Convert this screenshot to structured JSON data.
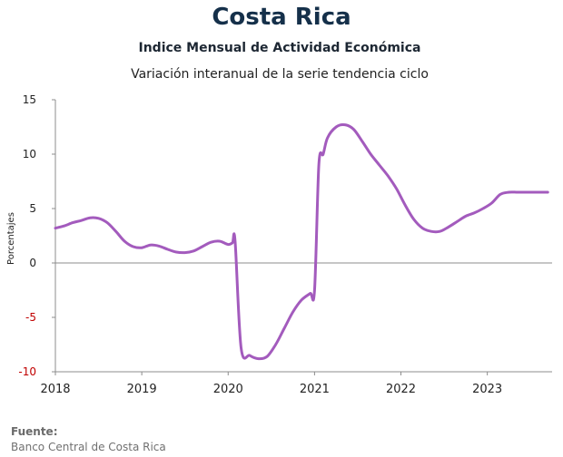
{
  "header": {
    "title": "Costa Rica",
    "subtitle": "Indice Mensual de  Actividad Económica",
    "caption": "Variación interanual de la serie tendencia ciclo"
  },
  "footer": {
    "source_label": "Fuente:",
    "source_text": "Banco Central de Costa Rica"
  },
  "chart_data": {
    "type": "line",
    "ylabel": "Porcentajes",
    "xlabel": "",
    "ylim": [
      -10,
      15
    ],
    "yticks": [
      -10,
      -5,
      0,
      5,
      10,
      15
    ],
    "xlim": [
      2018,
      2023.75
    ],
    "xticks": [
      "2018",
      "2019",
      "2020",
      "2021",
      "2022",
      "2023"
    ],
    "grid": false,
    "negative_tick_color": "#c00000",
    "line_color": "#a35bbd",
    "series": [
      {
        "x": [
          2018.0,
          2018.1,
          2018.2,
          2018.3,
          2018.4,
          2018.5,
          2018.6,
          2018.7,
          2018.8,
          2018.9,
          2019.0,
          2019.1,
          2019.2,
          2019.3,
          2019.4,
          2019.5,
          2019.6,
          2019.7,
          2019.8,
          2019.9,
          2020.0,
          2020.05,
          2020.08,
          2020.15,
          2020.25,
          2020.35,
          2020.45,
          2020.55,
          2020.65,
          2020.75,
          2020.85,
          2020.95,
          2021.0,
          2021.05,
          2021.1,
          2021.15,
          2021.25,
          2021.35,
          2021.45,
          2021.55,
          2021.65,
          2021.75,
          2021.85,
          2021.95,
          2022.05,
          2022.15,
          2022.25,
          2022.35,
          2022.45,
          2022.55,
          2022.65,
          2022.75,
          2022.85,
          2022.95,
          2023.05,
          2023.15,
          2023.25,
          2023.35,
          2023.45,
          2023.55,
          2023.7
        ],
        "y": [
          3.2,
          3.4,
          3.7,
          3.9,
          4.15,
          4.1,
          3.7,
          2.9,
          2.0,
          1.5,
          1.4,
          1.65,
          1.55,
          1.25,
          1.0,
          0.95,
          1.1,
          1.5,
          1.9,
          2.0,
          1.7,
          1.85,
          2.0,
          -7.8,
          -8.5,
          -8.8,
          -8.6,
          -7.5,
          -6.0,
          -4.5,
          -3.4,
          -2.8,
          -2.5,
          9.0,
          10.0,
          11.5,
          12.5,
          12.7,
          12.3,
          11.2,
          10.0,
          9.0,
          8.0,
          6.8,
          5.3,
          4.0,
          3.2,
          2.9,
          2.9,
          3.3,
          3.8,
          4.3,
          4.6,
          5.0,
          5.5,
          6.3,
          6.5,
          6.5,
          6.5,
          6.5,
          6.5
        ]
      }
    ]
  }
}
